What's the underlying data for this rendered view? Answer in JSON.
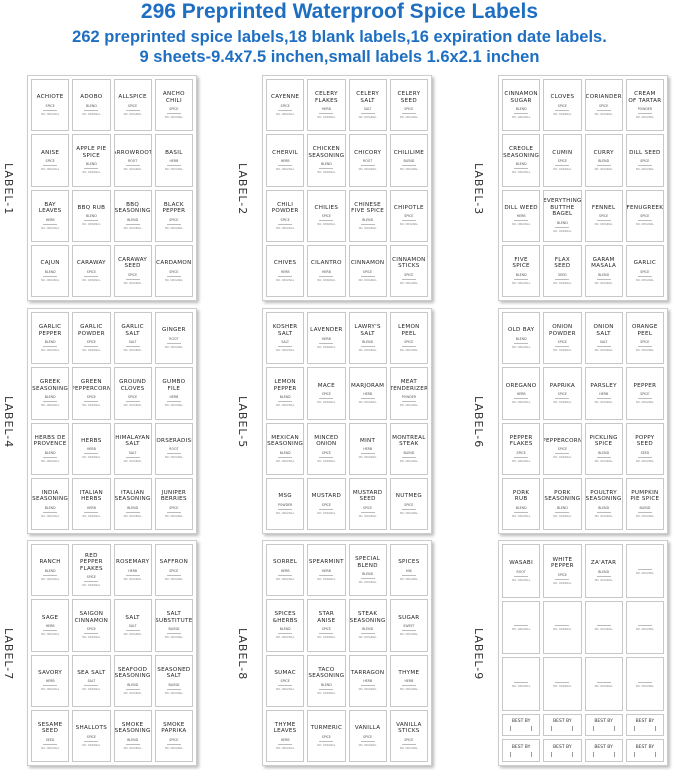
{
  "title": "296 Preprinted Waterproof Spice Labels",
  "subtitle1": "262 preprinted spice labels,18 blank labels,16 expiration date labels.",
  "subtitle2": "9 sheets-9.4x7.5 inchen,small labels 1.6x2.1 inchen",
  "accent_color": "#1e6fc2",
  "label_footer": "NO. ORIGINAL",
  "best_by": "BEST BY",
  "sheets": [
    {
      "name": "LABEL-1",
      "labels": [
        [
          "ACHIOTE",
          "SPICE"
        ],
        [
          "ADOBO",
          "BLEND"
        ],
        [
          "ALLSPICE",
          "SPICE"
        ],
        [
          "ANCHO\nCHILI",
          "SPICE"
        ],
        [
          "ANISE",
          "SPICE"
        ],
        [
          "APPLE PIE\nSPICE",
          "BLEND"
        ],
        [
          "ARROWROOT",
          "ROOT"
        ],
        [
          "BASIL",
          "HERB"
        ],
        [
          "BAY\nLEAVES",
          "HERB"
        ],
        [
          "BBQ RUB",
          "BLEND"
        ],
        [
          "BBQ\nSEASONING",
          "BLEND"
        ],
        [
          "BLACK\nPEPPER",
          "SPICE"
        ],
        [
          "CAJUN",
          "BLEND"
        ],
        [
          "CARAWAY",
          "SPICE"
        ],
        [
          "CARAWAY\nSEED",
          "SPICE"
        ],
        [
          "CARDAMON",
          "SPICE"
        ]
      ]
    },
    {
      "name": "LABEL-2",
      "labels": [
        [
          "CAYENNE",
          "SPICE"
        ],
        [
          "CELERY\nFLAKES",
          "HERB"
        ],
        [
          "CELERY\nSALT",
          "SALT"
        ],
        [
          "CELERY\nSEED",
          "SPICE"
        ],
        [
          "CHERVIL",
          "HERB"
        ],
        [
          "CHICKEN\nSEASONING",
          "BLEND"
        ],
        [
          "CHICORY",
          "ROOT"
        ],
        [
          "CHILILIME",
          "BLEND"
        ],
        [
          "CHILI\nPOWDER",
          "SPICE"
        ],
        [
          "CHILIES",
          "SPICE"
        ],
        [
          "CHINESE\nFIVE SPICE",
          "BLEND"
        ],
        [
          "CHIPOTLE",
          "SPICE"
        ],
        [
          "CHIVES",
          "HERB"
        ],
        [
          "CILANTRO",
          "HERB"
        ],
        [
          "CINNAMON",
          "SPICE"
        ],
        [
          "CINNAMON\nSTICKS",
          "SPICE"
        ]
      ]
    },
    {
      "name": "LABEL-3",
      "labels": [
        [
          "CINNAMON\nSUGAR",
          "BLEND"
        ],
        [
          "CLOVES",
          "SPICE"
        ],
        [
          "CORIANDER",
          "SPICE"
        ],
        [
          "CREAM\nOF TARTAR",
          "POWDER"
        ],
        [
          "CREOLE\nSEASONING",
          "BLEND"
        ],
        [
          "CUMIN",
          "SPICE"
        ],
        [
          "CURRY",
          "BLEND"
        ],
        [
          "DILL SEED",
          "SPICE"
        ],
        [
          "DILL WEED",
          "HERB"
        ],
        [
          "EVERYTHING\nBUTTHE\nBAGEL",
          "BLEND"
        ],
        [
          "FENNEL",
          "SPICE"
        ],
        [
          "FENUGREEK",
          "SPICE"
        ],
        [
          "FIVE\nSPICE",
          "BLEND"
        ],
        [
          "FLAX\nSEED",
          "SEED"
        ],
        [
          "GARAM\nMASALA",
          "BLEND"
        ],
        [
          "GARLIC",
          "SPICE"
        ]
      ]
    },
    {
      "name": "LABEL-4",
      "labels": [
        [
          "GARLIC\nPEPPER",
          "BLEND"
        ],
        [
          "GARLIC\nPOWDER",
          "SPICE"
        ],
        [
          "GARLIC\nSALT",
          "SALT"
        ],
        [
          "GINGER",
          "ROOT"
        ],
        [
          "GREEK\nSEASONING",
          "BLEND"
        ],
        [
          "GREEN\nPEPPERCORN",
          "SPICE"
        ],
        [
          "GROUND\nCLOVES",
          "SPICE"
        ],
        [
          "GUMBO\nFILE",
          "HERB"
        ],
        [
          "HERBS DE\nPROVENCE",
          "BLEND"
        ],
        [
          "HERBS",
          "HERB"
        ],
        [
          "HIMALAYAN\nSALT",
          "SALT"
        ],
        [
          "HORSERADISH",
          "ROOT"
        ],
        [
          "INDIA\nSEASONING",
          "BLEND"
        ],
        [
          "ITALIAN\nHERBS",
          "HERB"
        ],
        [
          "ITALIAN\nSEASONING",
          "BLEND"
        ],
        [
          "JUNIPER\nBERRIES",
          "SPICE"
        ]
      ]
    },
    {
      "name": "LABEL-5",
      "labels": [
        [
          "KOSHER\nSALT",
          "SALT"
        ],
        [
          "LAVENDER",
          "HERB"
        ],
        [
          "LAWRY'S\nSALT",
          "BLEND"
        ],
        [
          "LEMON\nPEEL",
          "SPICE"
        ],
        [
          "LEMON\nPEPPER",
          "BLEND"
        ],
        [
          "MACE",
          "SPICE"
        ],
        [
          "MARJORAM",
          "HERB"
        ],
        [
          "MEAT\nTENDERIZER",
          "POWDER"
        ],
        [
          "MEXICAN\nSEASONING",
          "BLEND"
        ],
        [
          "MINCED\nONION",
          "SPICE"
        ],
        [
          "MINT",
          "HERB"
        ],
        [
          "MONTREAL\nSTEAK",
          "BLEND"
        ],
        [
          "MSG",
          "POWDER"
        ],
        [
          "MUSTARD",
          "SPICE"
        ],
        [
          "MUSTARD\nSEED",
          "SPICE"
        ],
        [
          "NUTMEG",
          "SPICE"
        ]
      ]
    },
    {
      "name": "LABEL-6",
      "labels": [
        [
          "OLD BAY",
          "BLEND"
        ],
        [
          "ONION\nPOWDER",
          "SPICE"
        ],
        [
          "ONION\nSALT",
          "SALT"
        ],
        [
          "ORANGE\nPEEL",
          "SPICE"
        ],
        [
          "OREGANO",
          "HERB"
        ],
        [
          "PAPRIKA",
          "SPICE"
        ],
        [
          "PARSLEY",
          "HERB"
        ],
        [
          "PEPPER",
          "SPICE"
        ],
        [
          "PEPPER\nFLAKES",
          "SPICE"
        ],
        [
          "PEPPERCORN",
          "SPICE"
        ],
        [
          "PICKLING\nSPICE",
          "BLEND"
        ],
        [
          "POPPY\nSEED",
          "SEED"
        ],
        [
          "PORK\nRUB",
          "BLEND"
        ],
        [
          "PORK\nSEASONING",
          "BLEND"
        ],
        [
          "POULTRY\nSEASONING",
          "BLEND"
        ],
        [
          "PUMPKIN\nPIE SPICE",
          "BLEND"
        ]
      ]
    },
    {
      "name": "LABEL-7",
      "labels": [
        [
          "RANCH",
          "BLEND"
        ],
        [
          "RED\nPEPPER\nFLAKES",
          "SPICE"
        ],
        [
          "ROSEMARY",
          "HERB"
        ],
        [
          "SAFFRON",
          "SPICE"
        ],
        [
          "SAGE",
          "HERB"
        ],
        [
          "SAIGON\nCINNAMON",
          "SPICE"
        ],
        [
          "SALT",
          "SALT"
        ],
        [
          "SALT\nSUBSTITUTE",
          "BLEND"
        ],
        [
          "SAVORY",
          "HERB"
        ],
        [
          "SEA SALT",
          "SALT"
        ],
        [
          "SEAFOOD\nSEASONING",
          "BLEND"
        ],
        [
          "SEASONED\nSALT",
          "BLEND"
        ],
        [
          "SESAME\nSEED",
          "SEED"
        ],
        [
          "SHALLOTS",
          "SPICE"
        ],
        [
          "SMOKE\nSEASONING",
          "BLEND"
        ],
        [
          "SMOKE\nPAPRIKA",
          "SPICE"
        ]
      ]
    },
    {
      "name": "LABEL-8",
      "labels": [
        [
          "SORREL",
          "HERB"
        ],
        [
          "SPEARMINT",
          "HERB"
        ],
        [
          "SPECIAL\nBLEND",
          "BLEND"
        ],
        [
          "SPICES",
          "MIX"
        ],
        [
          "SPICES\n&HERBS",
          "BLEND"
        ],
        [
          "STAR\nANISE",
          "SPICE"
        ],
        [
          "STEAK\nSEASONING",
          "BLEND"
        ],
        [
          "SUGAR",
          "SWEET"
        ],
        [
          "SUMAC",
          "SPICE"
        ],
        [
          "TACO\nSEASONING",
          "BLEND"
        ],
        [
          "TARRAGON",
          "HERB"
        ],
        [
          "THYME",
          "HERB"
        ],
        [
          "THYME\nLEAVES",
          "HERB"
        ],
        [
          "TURMERIC",
          "SPICE"
        ],
        [
          "VANILLA",
          "SPICE"
        ],
        [
          "VANILLA\nSTICKS",
          "SPICE"
        ]
      ]
    },
    {
      "name": "LABEL-9",
      "labels": [
        [
          "WASABI",
          "ROOT"
        ],
        [
          "WHITE\nPEPPER",
          "SPICE"
        ],
        [
          "ZA'ATAR",
          "BLEND"
        ],
        [
          "",
          ""
        ],
        [
          "",
          ""
        ],
        [
          "",
          ""
        ],
        [
          "",
          ""
        ],
        [
          "",
          ""
        ],
        [
          "",
          ""
        ],
        [
          "",
          ""
        ],
        [
          "",
          ""
        ],
        [
          "",
          ""
        ]
      ],
      "best_by_count": 8
    }
  ]
}
